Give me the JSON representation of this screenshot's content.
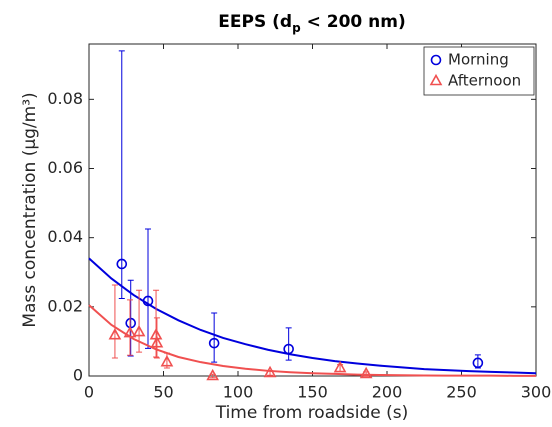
{
  "chart_data": {
    "type": "scatter",
    "title": "EEPS (d",
    "title_subscript": "p",
    "title_end": " < 200 nm)",
    "x_label": "Time from roadside (s)",
    "y_label": "Mass concentration (μg/m³)",
    "xlim": [
      0,
      300
    ],
    "xticks": [
      0,
      50,
      100,
      150,
      200,
      250,
      300
    ],
    "ylim": [
      0,
      0.096
    ],
    "yticks": [
      0,
      0.02,
      0.04,
      0.06,
      0.08
    ],
    "legend": "upper right",
    "series": [
      {
        "name": "Morning",
        "color": "#0000dd",
        "marker": "circle",
        "x": [
          22,
          28,
          39.6,
          84,
          134,
          261
        ],
        "values": [
          0.0324,
          0.0153,
          0.0217,
          0.0095,
          0.0078,
          0.0038
        ],
        "yerr_lower": [
          0.01,
          0.0095,
          0.0137,
          0.0055,
          0.0032,
          0.0015
        ],
        "yerr_upper": [
          0.0616,
          0.0124,
          0.0208,
          0.0087,
          0.0061,
          0.0023
        ],
        "fit": {
          "x": [
            0,
            15,
            30,
            45,
            60,
            75,
            90,
            105,
            120,
            135,
            150,
            165,
            180,
            195,
            210,
            225,
            240,
            255,
            270,
            285,
            300
          ],
          "values": [
            0.034,
            0.0282,
            0.0234,
            0.0194,
            0.0161,
            0.0133,
            0.011,
            0.0092,
            0.0076,
            0.0063,
            0.0052,
            0.0043,
            0.0036,
            0.003,
            0.0025,
            0.002,
            0.0017,
            0.0014,
            0.0012,
            0.001,
            0.0008
          ]
        }
      },
      {
        "name": "Afternoon",
        "color": "#f05050",
        "marker": "triangle",
        "x": [
          17.4,
          27.5,
          33.6,
          45,
          45.6,
          52.3,
          83,
          121.5,
          168.5,
          186
        ],
        "values": [
          0.0118,
          0.0124,
          0.0127,
          0.0118,
          0.0095,
          0.004,
          0,
          0.0009,
          0.0023,
          0.0006
        ],
        "yerr_lower": [
          0.0066,
          0.0064,
          0.0058,
          0.0063,
          0.0043,
          0.0017,
          0.0005,
          0.0007,
          0.001,
          0.0006
        ],
        "yerr_upper": [
          0.0145,
          0.0096,
          0.0121,
          0.013,
          0.0073,
          0.0026,
          0.0005,
          0.0007,
          0.001,
          0.0006
        ],
        "fit": {
          "x": [
            0,
            15,
            30,
            45,
            60,
            75,
            90,
            105,
            120,
            135,
            150,
            165,
            180,
            195,
            210,
            225,
            240,
            255,
            270,
            285,
            300
          ],
          "values": [
            0.0205,
            0.0148,
            0.0107,
            0.0077,
            0.0055,
            0.004,
            0.0029,
            0.0021,
            0.0015,
            0.0011,
            0.0008,
            0.0006,
            0.0004,
            0.0003,
            0.0002,
            0.00015,
            0.0001,
            0.0001,
            0.0001,
            4e-05,
            3e-05
          ]
        }
      }
    ]
  }
}
